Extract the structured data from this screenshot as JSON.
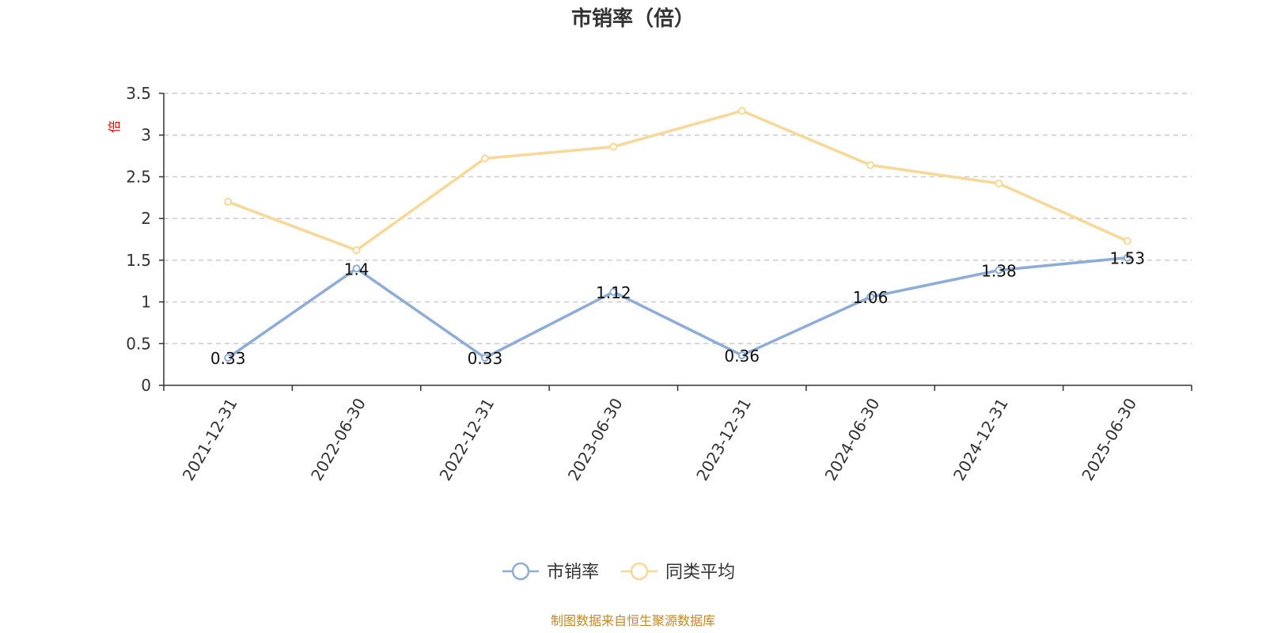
{
  "chart_data": {
    "type": "line",
    "title": "市销率（倍）",
    "ylabel": "倍",
    "xlabel": "",
    "categories": [
      "2021-12-31",
      "2022-06-30",
      "2022-12-31",
      "2023-06-30",
      "2023-12-31",
      "2024-06-30",
      "2024-12-31",
      "2025-06-30"
    ],
    "ylim": [
      0,
      3.5
    ],
    "yticks": [
      0,
      0.5,
      1,
      1.5,
      2,
      2.5,
      3,
      3.5
    ],
    "ytick_labels": [
      "0",
      "0.5",
      "1",
      "1.5",
      "2",
      "2.5",
      "3",
      "3.5"
    ],
    "grid": true,
    "legend_position": "bottom-center",
    "series": [
      {
        "name": "市销率",
        "color": "#8eacd8",
        "values": [
          0.33,
          1.4,
          0.33,
          1.12,
          0.36,
          1.06,
          1.38,
          1.53
        ],
        "data_labels": [
          "0.33",
          "1.4",
          "0.33",
          "1.12",
          "0.36",
          "1.06",
          "1.38",
          "1.53"
        ]
      },
      {
        "name": "同类平均",
        "color": "#f8d898",
        "values": [
          2.2,
          1.62,
          2.72,
          2.86,
          3.29,
          2.64,
          2.42,
          1.73
        ]
      }
    ]
  },
  "footer": "制图数据来自恒生聚源数据库"
}
